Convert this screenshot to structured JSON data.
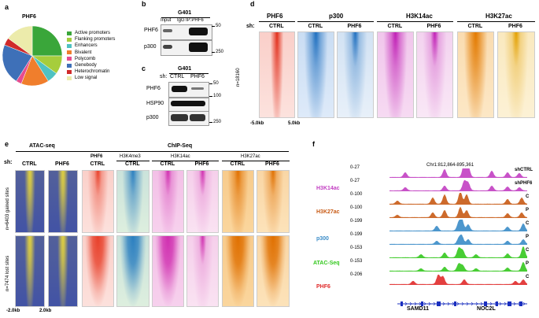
{
  "panel_a": {
    "label": "a",
    "title": "PHF6",
    "slices": [
      {
        "name": "Active promoters",
        "value": 25,
        "color": "#3aa63a"
      },
      {
        "name": "Flanking promoters",
        "value": 10,
        "color": "#a6cd3c"
      },
      {
        "name": "Enhancers",
        "value": 6,
        "color": "#4fc2c2"
      },
      {
        "name": "Bivalent",
        "value": 15,
        "color": "#f07e2c"
      },
      {
        "name": "Polycomb",
        "value": 3,
        "color": "#e74c8f"
      },
      {
        "name": "Genebody",
        "value": 22,
        "color": "#3e70b8"
      },
      {
        "name": "Heterochromatin",
        "value": 4,
        "color": "#d02a2a"
      },
      {
        "name": "Low signal",
        "value": 15,
        "color": "#ecebab"
      }
    ]
  },
  "panel_b": {
    "label": "b",
    "cell": "G401",
    "cols": [
      "Input",
      "IgG",
      "IP:PHF6"
    ],
    "rows": [
      "PHF6",
      "p300"
    ],
    "mw": [
      "50",
      "250"
    ]
  },
  "panel_c": {
    "label": "c",
    "cell": "G401",
    "sh_label": "sh:",
    "cols": [
      "CTRL",
      "PHF6"
    ],
    "rows": [
      "PHF6",
      "HSP90",
      "p300"
    ],
    "mw": [
      "50",
      "100",
      "250"
    ]
  },
  "panel_d": {
    "label": "d",
    "sh_label": "sh:",
    "groups": [
      "PHF6",
      "p300",
      "H3K14ac",
      "H3K27ac"
    ],
    "cols": [
      "CTRL",
      "CTRL",
      "PHF6",
      "CTRL",
      "PHF6",
      "CTRL",
      "PHF6"
    ],
    "n_label": "n=18160",
    "x_left": "-5.0kb",
    "x_right": "5.0kb"
  },
  "panel_e": {
    "label": "e",
    "sh_label": "sh:",
    "header_atac": "ATAC-seq",
    "header_chip": "ChIP-Seq",
    "groups": [
      "PHF6",
      "H3K4me3",
      "H3K14ac",
      "H3K27ac"
    ],
    "cols": [
      "CTRL",
      "PHF6",
      "CTRL",
      "CTRL",
      "CTRL",
      "PHF6",
      "CTRL",
      "PHF6"
    ],
    "row_labels": [
      "n=6403 gained sites",
      "n=7474 lost sites"
    ],
    "x_left": "-2.0kb",
    "x_right": "2.0kb"
  },
  "panel_f": {
    "label": "f",
    "locus": "Chr1:812,864-895,361",
    "tracks": [
      {
        "range": "0-27",
        "tag": "shCTRL"
      },
      {
        "range": "0-27",
        "tag": "shPHF6"
      },
      {
        "range": "0-100",
        "tag": "C"
      },
      {
        "range": "0-100",
        "tag": "P"
      },
      {
        "range": "0-199",
        "tag": "C"
      },
      {
        "range": "0-199",
        "tag": "P"
      },
      {
        "range": "0-153",
        "tag": "C"
      },
      {
        "range": "0-153",
        "tag": "P"
      },
      {
        "range": "0-206",
        "tag": "C"
      }
    ],
    "marks": [
      {
        "name": "H3K14ac",
        "color": "#c23fc2"
      },
      {
        "name": "H3K27ac",
        "color": "#c85a14"
      },
      {
        "name": "p300",
        "color": "#3a8cc8"
      },
      {
        "name": "ATAC-Seq",
        "color": "#34c81e"
      },
      {
        "name": "PHF6",
        "color": "#e02a2a"
      }
    ],
    "genes": [
      "SAMD11",
      "NOC2L"
    ]
  }
}
